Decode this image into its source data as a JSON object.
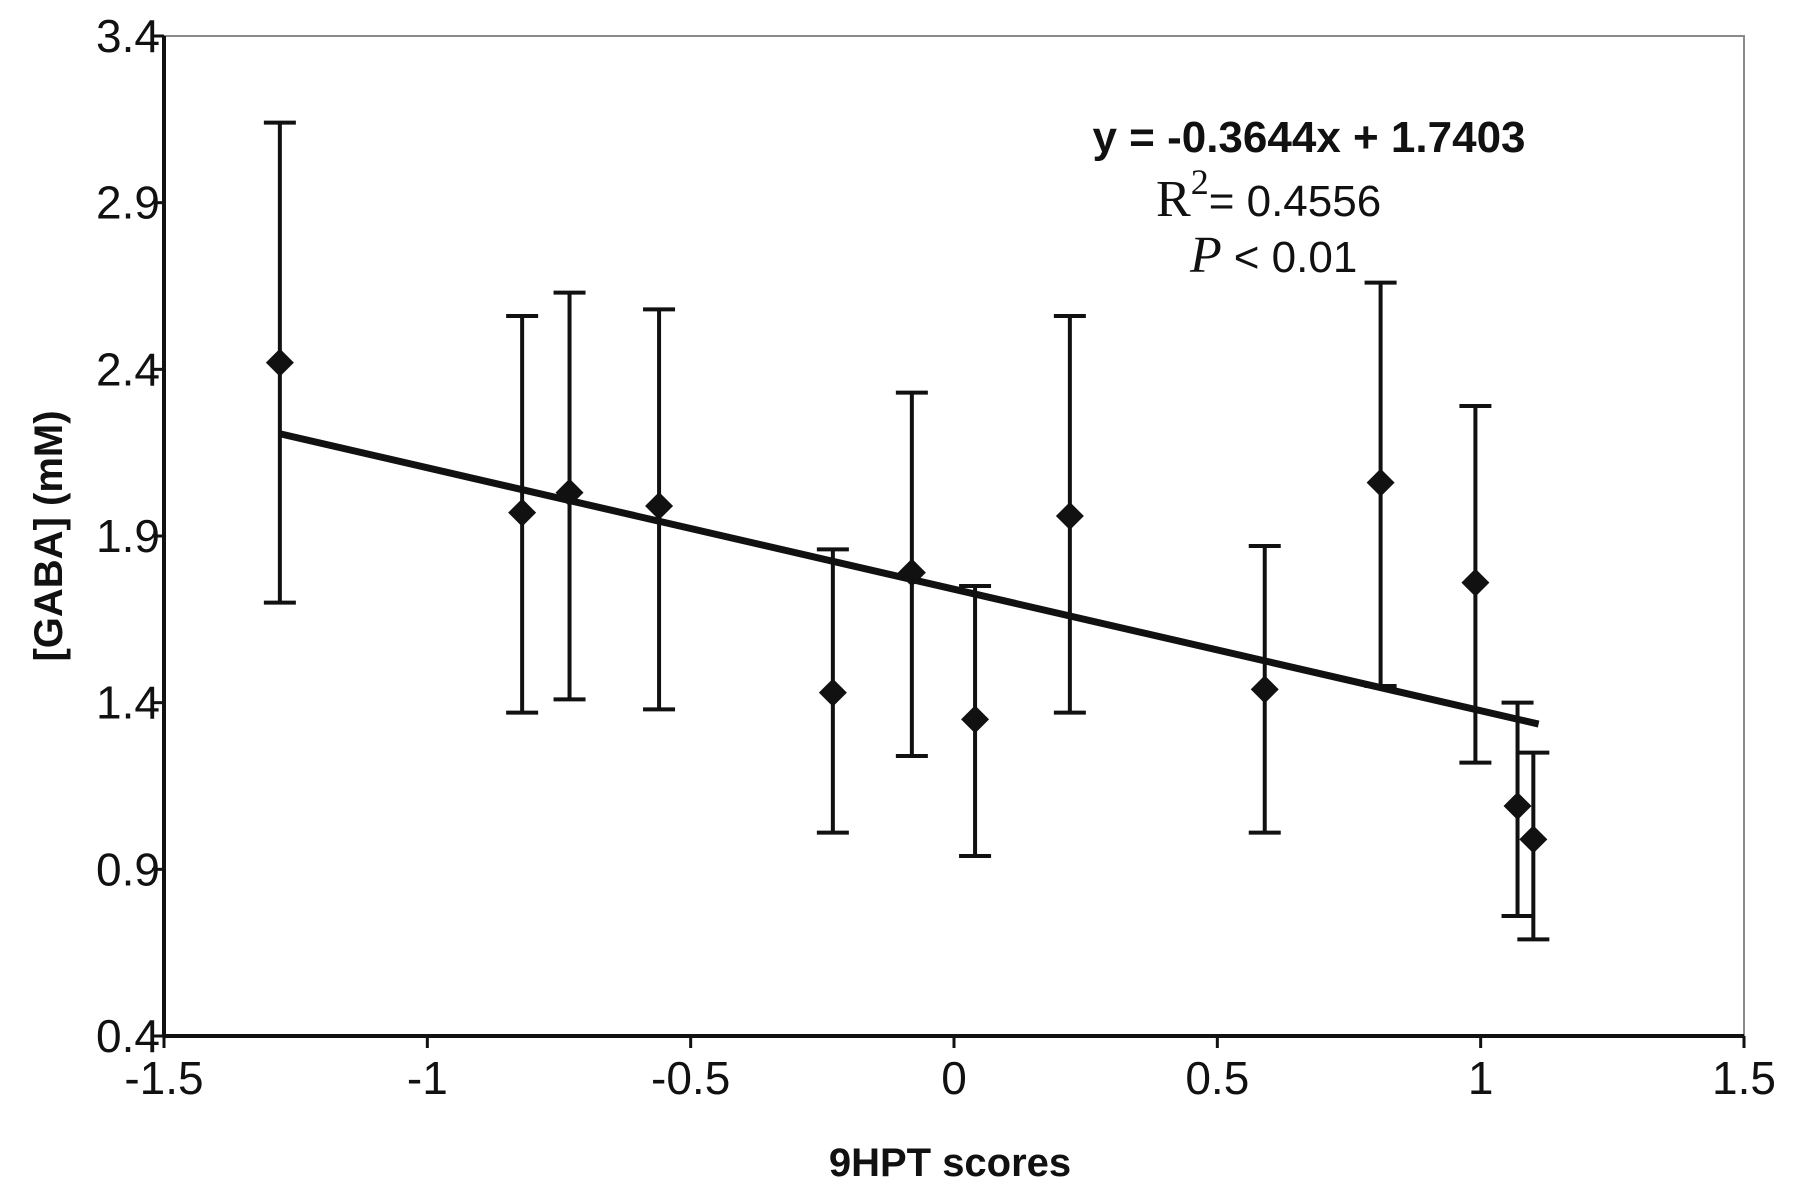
{
  "chart_data": {
    "type": "scatter",
    "title": "",
    "xlabel": "9HPT scores",
    "ylabel": "[GABA] (mM)",
    "xlim": [
      -1.5,
      1.5
    ],
    "ylim": [
      0.4,
      3.4
    ],
    "x_ticks": [
      -1.5,
      -1,
      -0.5,
      0,
      0.5,
      1,
      1.5
    ],
    "x_tick_labels": [
      "-1.5",
      "-1",
      "-0.5",
      "0",
      "0.5",
      "1",
      "1.5"
    ],
    "y_ticks": [
      0.4,
      0.9,
      1.4,
      1.9,
      2.4,
      2.9,
      3.4
    ],
    "y_tick_labels": [
      "0.4",
      "0.9",
      "1.4",
      "1.9",
      "2.4",
      "2.9",
      "3.4"
    ],
    "grid": false,
    "series": [
      {
        "marker": "diamond",
        "color": "#111111",
        "points": [
          {
            "x": -1.28,
            "y": 2.42,
            "err_low": 1.7,
            "err_high": 3.14
          },
          {
            "x": -0.82,
            "y": 1.97,
            "err_low": 1.37,
            "err_high": 2.56
          },
          {
            "x": -0.73,
            "y": 2.03,
            "err_low": 1.41,
            "err_high": 2.63
          },
          {
            "x": -0.56,
            "y": 1.99,
            "err_low": 1.38,
            "err_high": 2.58
          },
          {
            "x": -0.23,
            "y": 1.43,
            "err_low": 1.01,
            "err_high": 1.86
          },
          {
            "x": -0.08,
            "y": 1.79,
            "err_low": 1.24,
            "err_high": 2.33
          },
          {
            "x": 0.04,
            "y": 1.35,
            "err_low": 0.94,
            "err_high": 1.75
          },
          {
            "x": 0.22,
            "y": 1.96,
            "err_low": 1.37,
            "err_high": 2.56
          },
          {
            "x": 0.59,
            "y": 1.44,
            "err_low": 1.01,
            "err_high": 1.87
          },
          {
            "x": 0.81,
            "y": 2.06,
            "err_low": 1.45,
            "err_high": 2.66
          },
          {
            "x": 0.99,
            "y": 1.76,
            "err_low": 1.22,
            "err_high": 2.29
          },
          {
            "x": 1.07,
            "y": 1.09,
            "err_low": 0.76,
            "err_high": 1.4
          },
          {
            "x": 1.1,
            "y": 0.99,
            "err_low": 0.69,
            "err_high": 1.25
          }
        ]
      }
    ],
    "trendline": {
      "slope": -0.3644,
      "intercept": 1.7403,
      "x_start": -1.28,
      "x_end": 1.11,
      "color": "#111111"
    },
    "annotations": {
      "equation": "y = -0.3644x + 1.7403",
      "r_letter": "R",
      "r_exponent": "2",
      "r_value": "= 0.4556",
      "p_letter": "P",
      "p_value": "< 0.01"
    }
  }
}
